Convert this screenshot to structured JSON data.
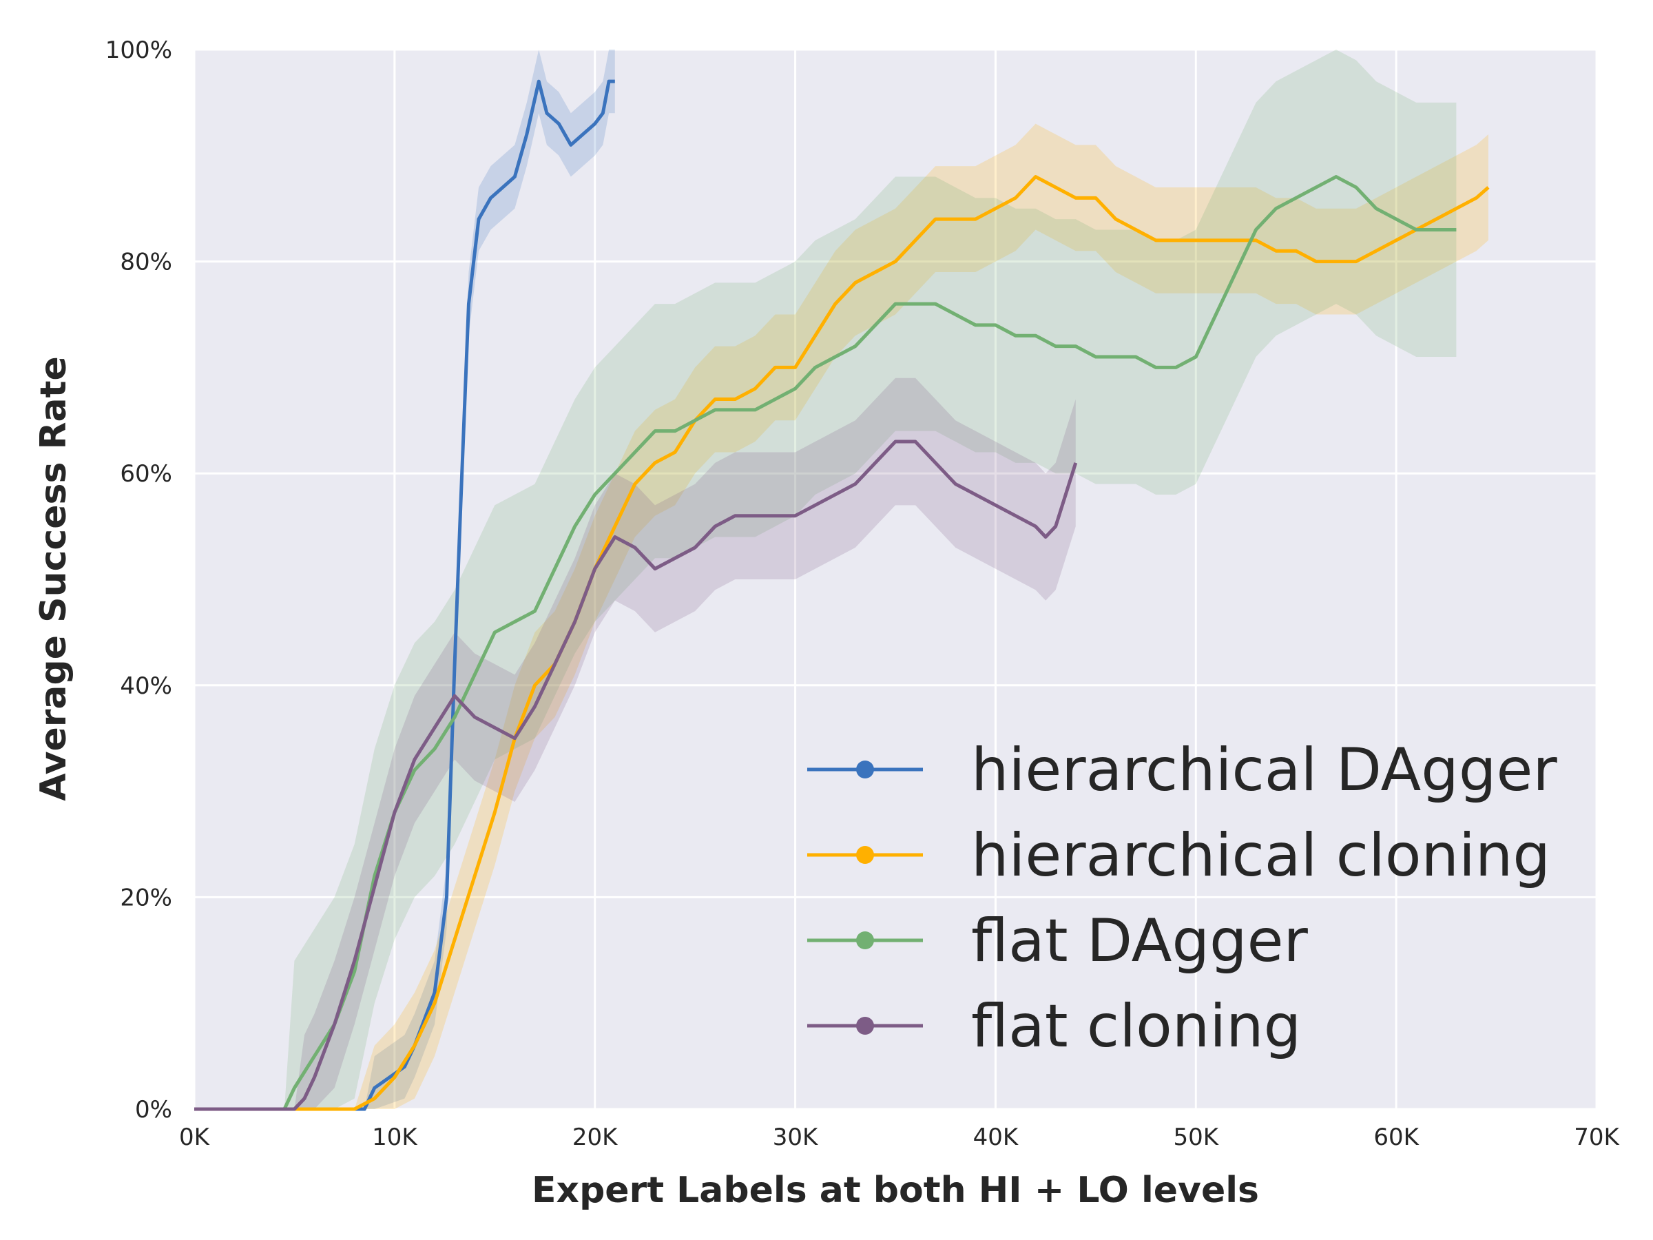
{
  "chart_data": {
    "type": "line",
    "xlabel": "Expert Labels at both HI + LO levels",
    "ylabel": "Average Success Rate",
    "xlim": [
      0,
      70000
    ],
    "ylim": [
      0,
      100
    ],
    "x_ticks": [
      0,
      10000,
      20000,
      30000,
      40000,
      50000,
      60000,
      70000
    ],
    "x_tick_labels": [
      "0K",
      "10K",
      "20K",
      "30K",
      "40K",
      "50K",
      "60K",
      "70K"
    ],
    "y_ticks": [
      0,
      20,
      40,
      60,
      80,
      100
    ],
    "y_tick_labels": [
      "0%",
      "20%",
      "40%",
      "60%",
      "80%",
      "100%"
    ],
    "grid": true,
    "legend_position": "lower-right",
    "series": [
      {
        "name": "hierarchical DAgger",
        "color": "#3a73bd",
        "band": 3,
        "x": [
          0,
          8500,
          9000,
          10500,
          11000,
          12000,
          12600,
          13000,
          13300,
          13700,
          14200,
          14800,
          15400,
          16000,
          16600,
          17200,
          17600,
          18200,
          18800,
          19400,
          20000,
          20400,
          20700,
          21000
        ],
        "y": [
          0,
          0,
          2,
          4,
          6,
          11,
          20,
          42,
          57,
          76,
          84,
          86,
          87,
          88,
          92,
          97,
          94,
          93,
          91,
          92,
          93,
          94,
          97,
          97
        ]
      },
      {
        "name": "hierarchical cloning",
        "color": "#ffb000",
        "band": 5,
        "x": [
          0,
          8000,
          9000,
          10000,
          11000,
          12000,
          13000,
          14000,
          15000,
          16000,
          17000,
          18000,
          19000,
          20000,
          21000,
          22000,
          23000,
          24000,
          25000,
          26000,
          27000,
          28000,
          29000,
          30000,
          31000,
          32000,
          33000,
          34000,
          35000,
          36000,
          37000,
          38000,
          39000,
          40000,
          41000,
          42000,
          43000,
          44000,
          45000,
          46000,
          47000,
          48000,
          49000,
          50000,
          51000,
          52000,
          53000,
          54000,
          55000,
          56000,
          57000,
          58000,
          59000,
          60000,
          61000,
          62000,
          63000,
          64000,
          64600
        ],
        "y": [
          0,
          0,
          1,
          3,
          6,
          10,
          16,
          22,
          28,
          35,
          40,
          42,
          46,
          51,
          55,
          59,
          61,
          62,
          65,
          67,
          67,
          68,
          70,
          70,
          73,
          76,
          78,
          79,
          80,
          82,
          84,
          84,
          84,
          85,
          86,
          88,
          87,
          86,
          86,
          84,
          83,
          82,
          82,
          82,
          82,
          82,
          82,
          81,
          81,
          80,
          80,
          80,
          81,
          82,
          83,
          84,
          85,
          86,
          87
        ]
      },
      {
        "name": "flat DAgger",
        "color": "#72b072",
        "band": 12,
        "x": [
          0,
          4500,
          5000,
          6000,
          7000,
          8000,
          9000,
          10000,
          11000,
          12000,
          13000,
          14000,
          15000,
          16000,
          17000,
          18000,
          19000,
          20000,
          21000,
          22000,
          23000,
          24000,
          25000,
          26000,
          27000,
          28000,
          29000,
          30000,
          31000,
          32000,
          33000,
          34000,
          35000,
          36000,
          37000,
          38000,
          39000,
          40000,
          41000,
          42000,
          43000,
          44000,
          45000,
          46000,
          47000,
          48000,
          49000,
          50000,
          51000,
          52000,
          53000,
          54000,
          55000,
          56000,
          57000,
          58000,
          59000,
          60000,
          61000,
          62000,
          63000
        ],
        "y": [
          0,
          0,
          2,
          5,
          8,
          13,
          22,
          28,
          32,
          34,
          37,
          41,
          45,
          46,
          47,
          51,
          55,
          58,
          60,
          62,
          64,
          64,
          65,
          66,
          66,
          66,
          67,
          68,
          70,
          71,
          72,
          74,
          76,
          76,
          76,
          75,
          74,
          74,
          73,
          73,
          72,
          72,
          71,
          71,
          71,
          70,
          70,
          71,
          75,
          79,
          83,
          85,
          86,
          87,
          88,
          87,
          85,
          84,
          83,
          83,
          83
        ]
      },
      {
        "name": "flat cloning",
        "color": "#7d5c86",
        "band": 6,
        "x": [
          0,
          5000,
          5500,
          6000,
          7000,
          8000,
          9000,
          10000,
          11000,
          12000,
          13000,
          14000,
          15000,
          16000,
          17000,
          18000,
          19000,
          20000,
          21000,
          22000,
          23000,
          24000,
          25000,
          26000,
          27000,
          28000,
          29000,
          30000,
          31000,
          32000,
          33000,
          34000,
          35000,
          36000,
          37000,
          38000,
          39000,
          40000,
          41000,
          42000,
          42500,
          43000,
          43500,
          44000
        ],
        "y": [
          0,
          0,
          1,
          3,
          8,
          14,
          21,
          28,
          33,
          36,
          39,
          37,
          36,
          35,
          38,
          42,
          46,
          51,
          54,
          53,
          51,
          52,
          53,
          55,
          56,
          56,
          56,
          56,
          57,
          58,
          59,
          61,
          63,
          63,
          61,
          59,
          58,
          57,
          56,
          55,
          54,
          55,
          58,
          61
        ]
      }
    ]
  }
}
